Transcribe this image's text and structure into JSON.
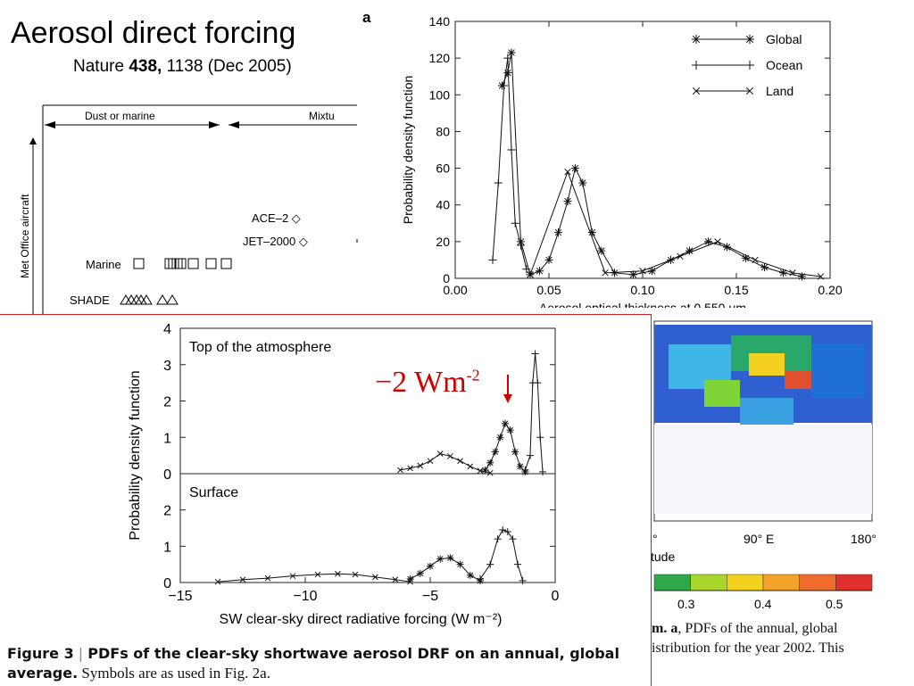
{
  "slide": {
    "title": "Aerosol direct forcing",
    "subtitle_pre": "Nature ",
    "subtitle_vol": "438,",
    "subtitle_post": " 1138 (Dec 2005)"
  },
  "panel_letter": "a",
  "left_figure": {
    "header_left": "Dust or marine",
    "header_right": "Mixtu",
    "vertical_label": "Met Office aircraft",
    "rows": [
      {
        "label": "ACE–2 ◇"
      },
      {
        "label": "JET–2000 ◇"
      },
      {
        "label": "Marine"
      },
      {
        "label": "SHADE"
      }
    ]
  },
  "chart_data": [
    {
      "type": "line",
      "title": "",
      "xlabel": "Aerosol optical thickness at 0.550 μm",
      "ylabel": "Probability density function",
      "xlim": [
        0.0,
        0.2
      ],
      "ylim": [
        0,
        140
      ],
      "xticks": [
        "0.00",
        "0.05",
        "0.10",
        "0.15",
        "0.20"
      ],
      "yticks": [
        "0",
        "20",
        "40",
        "60",
        "80",
        "100",
        "120",
        "140"
      ],
      "legend_position": "top-right",
      "series": [
        {
          "name": "Global",
          "marker": "asterisk",
          "x": [
            0.025,
            0.028,
            0.03,
            0.035,
            0.04,
            0.045,
            0.05,
            0.055,
            0.06,
            0.064,
            0.068,
            0.073,
            0.078,
            0.085,
            0.095,
            0.105,
            0.115,
            0.125,
            0.135,
            0.145,
            0.155,
            0.165,
            0.175,
            0.185
          ],
          "y": [
            105,
            112,
            123,
            20,
            2,
            4,
            10,
            25,
            42,
            60,
            52,
            25,
            15,
            3,
            2,
            4,
            10,
            15,
            20,
            17,
            11,
            6,
            3,
            1
          ]
        },
        {
          "name": "Ocean",
          "marker": "plus",
          "x": [
            0.02,
            0.023,
            0.026,
            0.028,
            0.03,
            0.032,
            0.035,
            0.038
          ],
          "y": [
            10,
            52,
            105,
            120,
            70,
            30,
            18,
            5
          ]
        },
        {
          "name": "Land",
          "marker": "x",
          "x": [
            0.04,
            0.06,
            0.08,
            0.1,
            0.12,
            0.14,
            0.16,
            0.18,
            0.195
          ],
          "y": [
            2,
            58,
            3,
            4,
            12,
            20,
            10,
            3,
            1
          ]
        }
      ]
    },
    {
      "type": "line",
      "title": "",
      "xlabel": "SW clear-sky direct radiative forcing (W m⁻²)",
      "ylabel": "Probability density function",
      "xlim": [
        -15,
        0
      ],
      "ylim": [
        0,
        4
      ],
      "xticks": [
        "−15",
        "−10",
        "−5",
        "0"
      ],
      "panels": [
        {
          "label": "Top of the atmosphere",
          "yticks": [
            "0",
            "1",
            "2",
            "3",
            "4"
          ],
          "series": [
            {
              "name": "Land",
              "marker": "x",
              "x": [
                -6.2,
                -5.8,
                -5.4,
                -5.0,
                -4.6,
                -4.2,
                -3.8,
                -3.4,
                -3.0,
                -2.6
              ],
              "y": [
                0.1,
                0.15,
                0.22,
                0.35,
                0.55,
                0.48,
                0.35,
                0.2,
                0.08,
                0.02
              ]
            },
            {
              "name": "Global",
              "marker": "asterisk",
              "x": [
                -2.8,
                -2.6,
                -2.4,
                -2.2,
                -2.0,
                -1.8,
                -1.6,
                -1.4,
                -1.2
              ],
              "y": [
                0.1,
                0.3,
                0.6,
                1.0,
                1.38,
                1.2,
                0.6,
                0.2,
                0.05
              ]
            },
            {
              "name": "Ocean",
              "marker": "plus",
              "x": [
                -1.2,
                -1.0,
                -0.9,
                -0.8,
                -0.7,
                -0.6,
                -0.5
              ],
              "y": [
                0.1,
                0.5,
                2.5,
                3.3,
                2.5,
                1.0,
                0.05
              ]
            }
          ]
        },
        {
          "label": "Surface",
          "yticks": [
            "0",
            "1",
            "2"
          ],
          "series": [
            {
              "name": "Land",
              "marker": "x",
              "x": [
                -13.5,
                -12.5,
                -11.5,
                -10.5,
                -9.5,
                -8.7,
                -8.0,
                -7.2,
                -6.4,
                -5.8
              ],
              "y": [
                0.02,
                0.08,
                0.12,
                0.18,
                0.22,
                0.24,
                0.22,
                0.15,
                0.08,
                0.02
              ]
            },
            {
              "name": "Global",
              "marker": "asterisk",
              "x": [
                -5.8,
                -5.4,
                -5.0,
                -4.6,
                -4.2,
                -3.8,
                -3.4,
                -3.0
              ],
              "y": [
                0.1,
                0.25,
                0.45,
                0.65,
                0.68,
                0.5,
                0.2,
                0.05
              ]
            },
            {
              "name": "Ocean",
              "marker": "plus",
              "x": [
                -3.0,
                -2.6,
                -2.3,
                -2.1,
                -1.9,
                -1.7,
                -1.5,
                -1.3
              ],
              "y": [
                0.1,
                0.5,
                1.2,
                1.45,
                1.4,
                1.2,
                0.5,
                0.05
              ]
            }
          ]
        }
      ]
    }
  ],
  "annotation": {
    "text": "−2 Wm",
    "sup": "-2",
    "color": "#d10000"
  },
  "map": {
    "axis_labels": [
      "°",
      "90° E",
      "180°"
    ],
    "axis_word": "tude",
    "colorbar_ticks": [
      "0.3",
      "0.4",
      "0.5"
    ],
    "colorbar_colors": [
      "#2ea84a",
      "#a8d62a",
      "#f2d21e",
      "#f3a22a",
      "#ee6d2c",
      "#e0302e"
    ]
  },
  "caption": {
    "fig_label": "Figure 3",
    "separator": " | ",
    "bold_text": "PDFs of the clear-sky shortwave aerosol DRF on an annual, global average.",
    "rest": " Symbols are as used in Fig. 2a."
  },
  "map_caption": {
    "line1_bold": "m.  a",
    "line1_rest": ", PDFs of the annual, global",
    "line2": "istribution for the year 2002. This"
  }
}
